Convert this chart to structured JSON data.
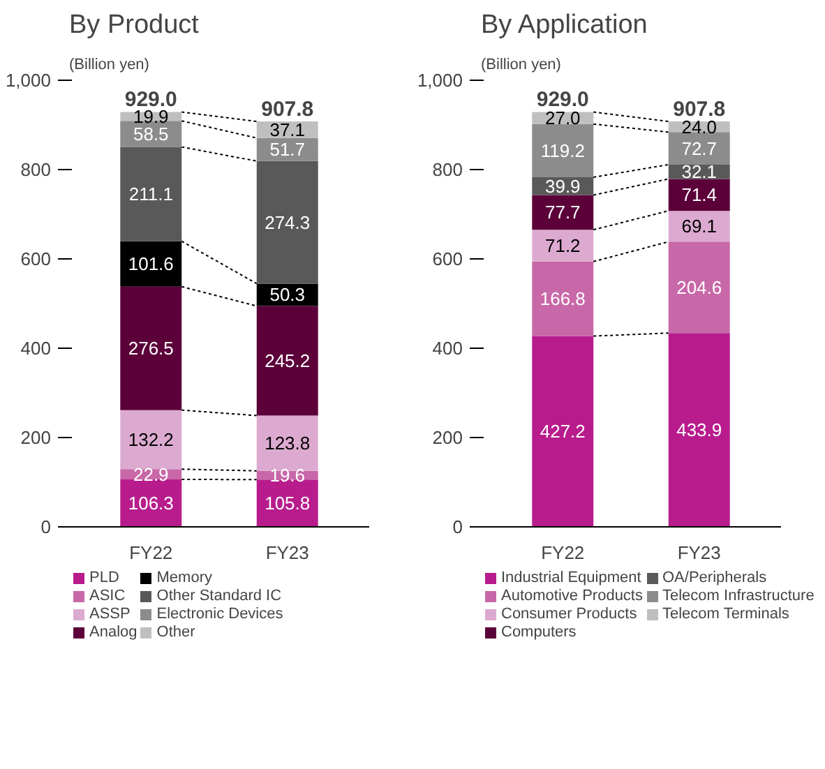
{
  "chart_data": [
    {
      "type": "bar",
      "title": "By Product",
      "ylabel": "(Billion yen)",
      "stacked": true,
      "categories": [
        "FY22",
        "FY23"
      ],
      "ylim": [
        0,
        1000
      ],
      "yticks": [
        0,
        200,
        400,
        600,
        800,
        {
          "value": 1000,
          "label": "1,000"
        }
      ],
      "data_labels": true,
      "totals": [
        "929.0",
        "907.8"
      ],
      "legend": "bottom",
      "grid": false,
      "series": [
        {
          "name": "PLD",
          "color": "#b81c8c",
          "values": [
            106.3,
            105.8
          ]
        },
        {
          "name": "ASIC",
          "color": "#c868a8",
          "values": [
            22.9,
            19.6
          ]
        },
        {
          "name": "ASSP",
          "color": "#dcaad0",
          "values": [
            132.2,
            123.8
          ]
        },
        {
          "name": "Analog",
          "color": "#5c003a",
          "values": [
            276.5,
            245.2
          ]
        },
        {
          "name": "Memory",
          "color": "#000000",
          "values": [
            101.6,
            50.3
          ]
        },
        {
          "name": "Other Standard IC",
          "color": "#595959",
          "values": [
            211.1,
            274.3
          ]
        },
        {
          "name": "Electronic Devices",
          "color": "#8c8c8c",
          "values": [
            58.5,
            51.7
          ]
        },
        {
          "name": "Other",
          "color": "#bfbfbf",
          "values": [
            19.9,
            37.1
          ]
        }
      ]
    },
    {
      "type": "bar",
      "title": "By Application",
      "ylabel": "(Billion yen)",
      "stacked": true,
      "categories": [
        "FY22",
        "FY23"
      ],
      "ylim": [
        0,
        1000
      ],
      "yticks": [
        0,
        200,
        400,
        600,
        800,
        {
          "value": 1000,
          "label": "1,000"
        }
      ],
      "data_labels": true,
      "totals": [
        "929.0",
        "907.8"
      ],
      "legend": "bottom",
      "grid": false,
      "series": [
        {
          "name": "Industrial Equipment",
          "color": "#b81c8c",
          "values": [
            427.2,
            433.9
          ]
        },
        {
          "name": "Automotive Products",
          "color": "#c868a8",
          "values": [
            166.8,
            204.6
          ]
        },
        {
          "name": "Consumer Products",
          "color": "#dcaad0",
          "values": [
            71.2,
            69.1
          ]
        },
        {
          "name": "Computers",
          "color": "#5c003a",
          "values": [
            77.7,
            71.4
          ]
        },
        {
          "name": "OA/Peripherals",
          "color": "#595959",
          "values": [
            39.9,
            32.1
          ]
        },
        {
          "name": "Telecom Infrastructure",
          "color": "#8c8c8c",
          "values": [
            119.2,
            72.7
          ]
        },
        {
          "name": "Telecom Terminals",
          "color": "#bfbfbf",
          "values": [
            27.0,
            24.0
          ],
          "value_labels": [
            "27.0",
            "24.0"
          ]
        }
      ]
    }
  ]
}
